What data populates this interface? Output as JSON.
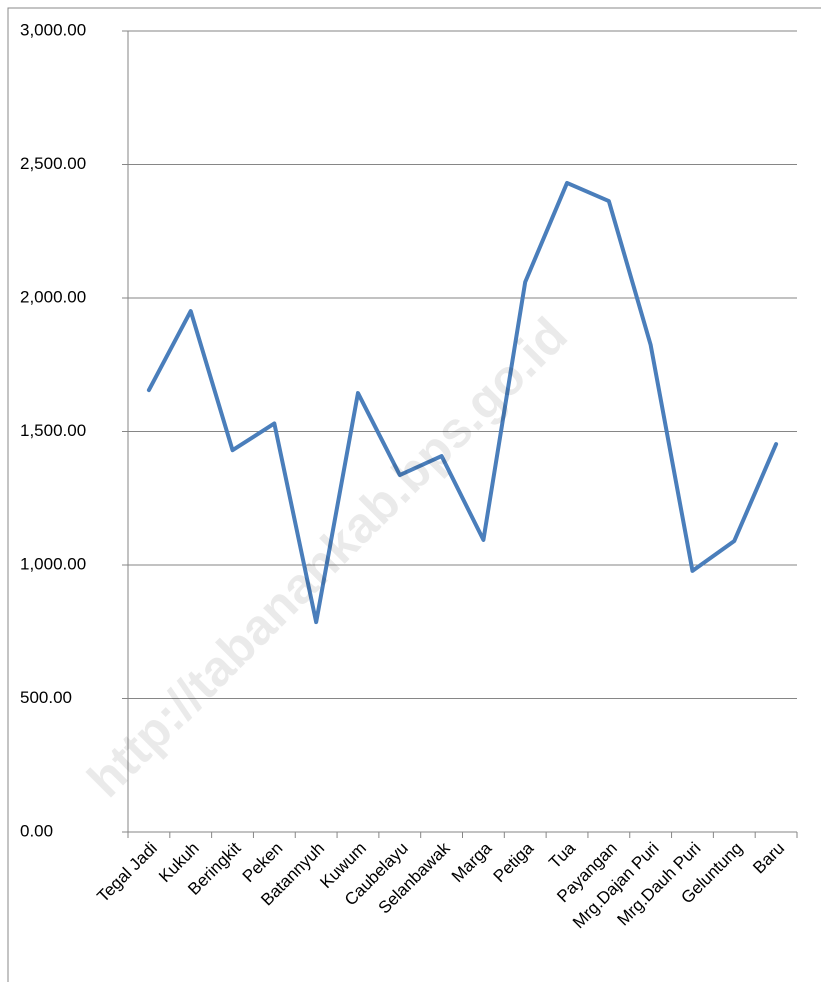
{
  "chart_data": {
    "type": "line",
    "categories": [
      "Tegal Jadi",
      "Kukuh",
      "Beringkit",
      "Peken",
      "Batannyuh",
      "Kuwum",
      "Caubelayu",
      "Selanbawak",
      "Marga",
      "Petiga",
      "Tua",
      "Payangan",
      "Mrg.Dajan Puri",
      "Mrg.Dauh Puri",
      "Geluntung",
      "Baru"
    ],
    "series": [
      {
        "color": "#4a7ebb",
        "values": [
          1655,
          1951,
          1430,
          1530,
          786,
          1644,
          1337,
          1408,
          1094,
          2060,
          2431,
          2363,
          1824,
          978,
          1090,
          1453
        ]
      }
    ],
    "ylim": [
      0,
      3000
    ],
    "yticks": [
      {
        "value": 0,
        "label": "0.00"
      },
      {
        "value": 500,
        "label": "500.00"
      },
      {
        "value": 1000,
        "label": "1,000.00"
      },
      {
        "value": 1500,
        "label": "1,500.00"
      },
      {
        "value": 2000,
        "label": "2,000.00"
      },
      {
        "value": 2500,
        "label": "2,500.00"
      },
      {
        "value": 3000,
        "label": "3,000.00"
      }
    ],
    "grid": true,
    "watermark": "http://tabanankab.bps.go.id"
  }
}
